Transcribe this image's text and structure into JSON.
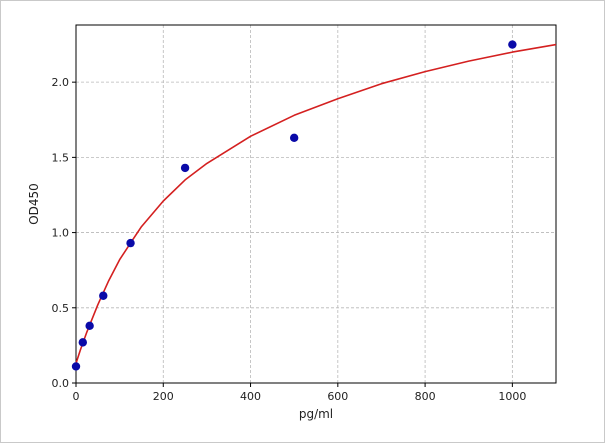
{
  "chart_data": {
    "type": "scatter",
    "title": "",
    "xlabel": "pg/ml",
    "ylabel": "OD450",
    "xlim": [
      0,
      1100
    ],
    "ylim": [
      0,
      2.38
    ],
    "x_ticks": [
      0,
      200,
      400,
      600,
      800,
      1000
    ],
    "x_tick_labels": [
      "0",
      "200",
      "400",
      "600",
      "800",
      "1000"
    ],
    "y_ticks": [
      0,
      0.5,
      1.0,
      1.5,
      2.0
    ],
    "y_tick_labels": [
      "0.0",
      "0.5",
      "1.0",
      "1.5",
      "2.0"
    ],
    "grid": true,
    "series": [
      {
        "kind": "points",
        "color": "#0a0aa8",
        "x": [
          0,
          15.6,
          31.25,
          62.5,
          125,
          250,
          500,
          1000
        ],
        "y": [
          0.11,
          0.27,
          0.38,
          0.58,
          0.93,
          1.43,
          1.63,
          2.25
        ]
      },
      {
        "kind": "fitted-curve",
        "color": "#d42020",
        "x": [
          0,
          10,
          25,
          50,
          75,
          100,
          125,
          150,
          200,
          250,
          300,
          400,
          500,
          600,
          700,
          800,
          900,
          1000,
          1100
        ],
        "y": [
          0.13,
          0.22,
          0.34,
          0.52,
          0.68,
          0.82,
          0.93,
          1.04,
          1.21,
          1.35,
          1.46,
          1.64,
          1.78,
          1.89,
          1.99,
          2.07,
          2.14,
          2.2,
          2.25
        ]
      }
    ]
  }
}
